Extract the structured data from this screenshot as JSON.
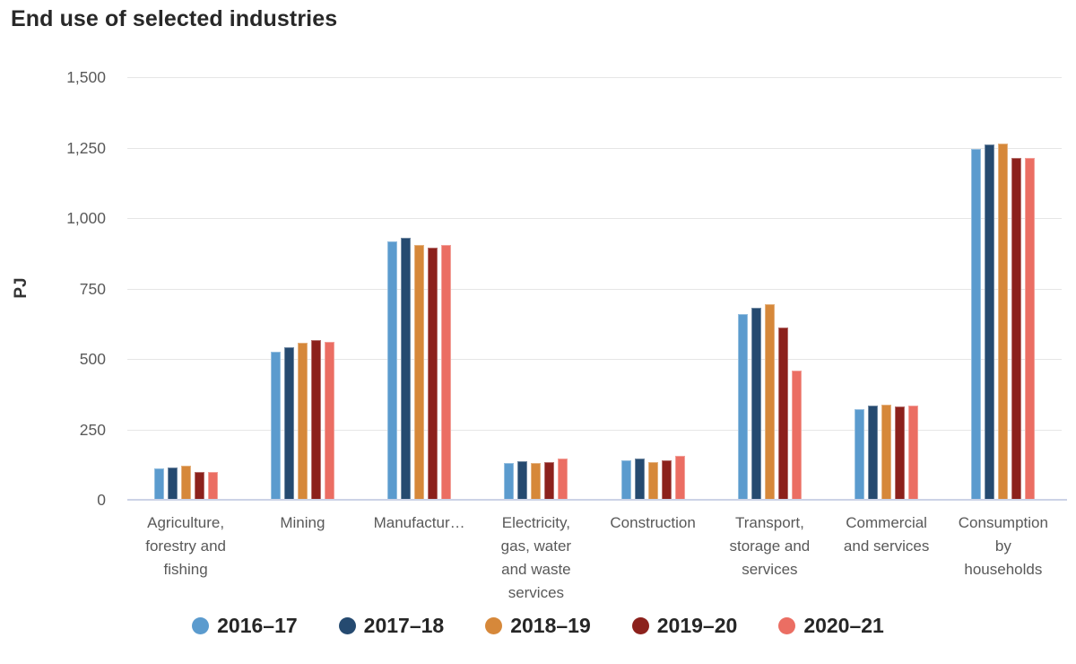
{
  "chart_data": {
    "type": "bar",
    "title": "End use of selected industries",
    "ylabel": "PJ",
    "ylim": [
      0,
      1500
    ],
    "grid": true,
    "legend_position": "bottom",
    "yticks": [
      {
        "value": 0,
        "label": "0"
      },
      {
        "value": 250,
        "label": "250"
      },
      {
        "value": 500,
        "label": "500"
      },
      {
        "value": 750,
        "label": "750"
      },
      {
        "value": 1000,
        "label": "1,000"
      },
      {
        "value": 1250,
        "label": "1,250"
      },
      {
        "value": 1500,
        "label": "1,500"
      }
    ],
    "categories": [
      "Agriculture, forestry and fishing",
      "Mining",
      "Manufactur…",
      "Electricity, gas, water and waste services",
      "Construction",
      "Transport, storage and services",
      "Commercial and services",
      "Consumption by households"
    ],
    "series": [
      {
        "name": "2016–17",
        "color": "#5b9bce",
        "values": [
          112,
          525,
          918,
          130,
          141,
          658,
          322,
          1246
        ]
      },
      {
        "name": "2017–18",
        "color": "#254a70",
        "values": [
          116,
          542,
          930,
          138,
          146,
          681,
          334,
          1262
        ]
      },
      {
        "name": "2018–19",
        "color": "#d6883a",
        "values": [
          121,
          556,
          905,
          130,
          135,
          695,
          338,
          1263
        ]
      },
      {
        "name": "2019–20",
        "color": "#8c211c",
        "values": [
          100,
          567,
          894,
          135,
          141,
          612,
          330,
          1214
        ]
      },
      {
        "name": "2020–21",
        "color": "#eb6e63",
        "values": [
          99,
          561,
          906,
          145,
          155,
          460,
          334,
          1212
        ]
      }
    ],
    "colors": {
      "gridline": "#e6e6e6",
      "baseline": "#ccd3e6",
      "tick_text": "#595959",
      "category_text": "#595959",
      "title_text": "#282828",
      "legend_text": "#262626",
      "background": "#ffffff"
    }
  }
}
